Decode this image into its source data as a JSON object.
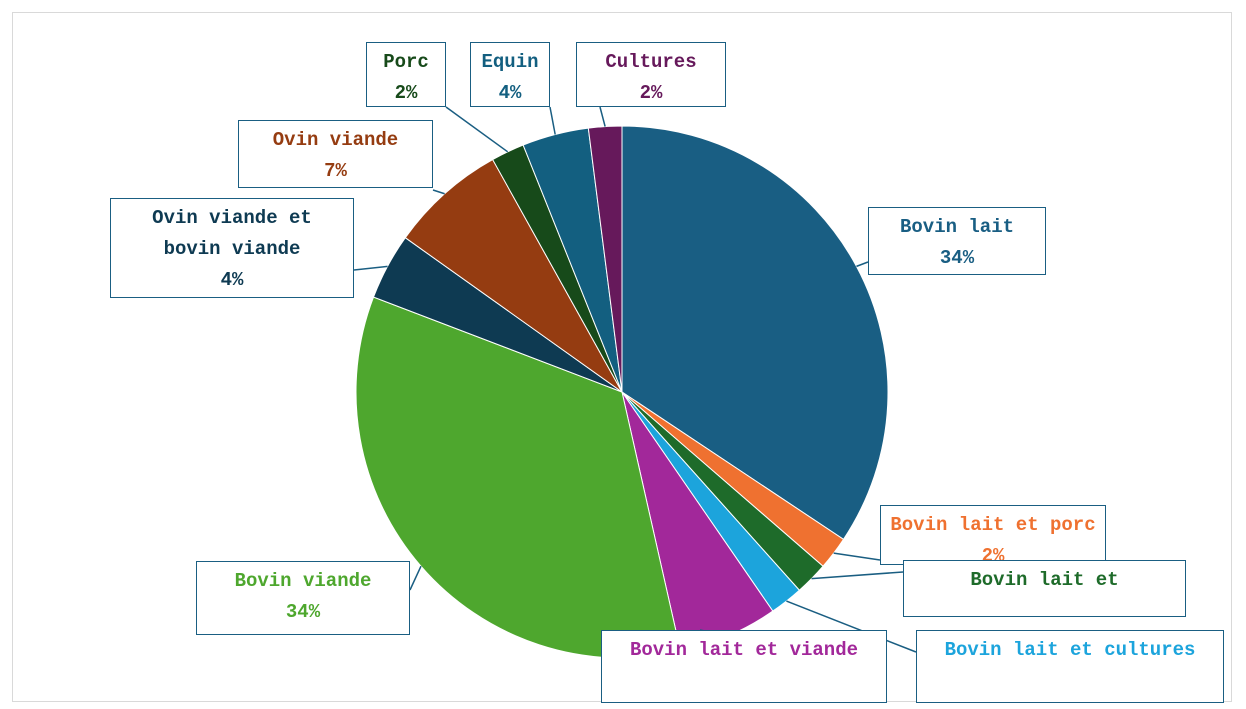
{
  "chart_data": {
    "type": "pie",
    "categories": [
      "Bovin lait",
      "Bovin lait et porc",
      "Bovin lait et",
      "Bovin lait et cultures",
      "Bovin lait et viande",
      "Bovin viande",
      "Ovin viande et bovin viande",
      "Ovin viande",
      "Porc",
      "Equin",
      "Cultures"
    ],
    "values": [
      34,
      2,
      2,
      2,
      6,
      34,
      4,
      7,
      2,
      4,
      2
    ],
    "value_labels": [
      "34%",
      "2%",
      null,
      null,
      null,
      "34%",
      "4%",
      "7%",
      "2%",
      "4%",
      "2%"
    ],
    "colors": [
      "#195e83",
      "#ef7130",
      "#1e6b2a",
      "#1ca4dc",
      "#a2289a",
      "#4ea72e",
      "#0e3a52",
      "#953c11",
      "#174a1a",
      "#135f80",
      "#66195b"
    ]
  }
}
